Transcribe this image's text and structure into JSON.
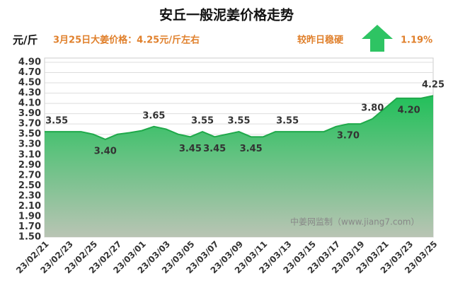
{
  "chart_data": {
    "type": "area",
    "title": "安丘一般泥姜价格走势",
    "unit_label": "元/斤",
    "subtitle": "3月25日大姜价格：4.25元/斤左右",
    "change_label": "较昨日稳硬",
    "change_value": "1.19%",
    "watermark": "中姜网监制（www.jiang7.com）",
    "color": "#1fa94a",
    "grid": true,
    "categories": [
      "23/02/21",
      null,
      "23/02/23",
      null,
      "23/02/25",
      null,
      "23/02/27",
      null,
      "23/03/01",
      null,
      "23/03/03",
      null,
      "23/03/05",
      null,
      "23/03/07",
      null,
      "23/03/09",
      null,
      "23/03/11",
      null,
      "23/03/13",
      null,
      "23/03/15",
      null,
      "23/03/17",
      null,
      "23/03/19",
      null,
      "23/03/21",
      null,
      "23/03/23",
      null,
      "23/03/25"
    ],
    "values": [
      3.55,
      3.55,
      3.55,
      3.55,
      3.5,
      3.4,
      3.5,
      3.53,
      3.57,
      3.65,
      3.6,
      3.5,
      3.45,
      3.55,
      3.45,
      3.5,
      3.55,
      3.45,
      3.45,
      3.55,
      3.55,
      3.55,
      3.55,
      3.55,
      3.65,
      3.7,
      3.7,
      3.8,
      4.0,
      4.2,
      4.2,
      4.2,
      4.25
    ],
    "value_labels": [
      null,
      "3.55",
      null,
      null,
      null,
      "3.40",
      null,
      null,
      null,
      "3.65",
      null,
      null,
      "3.45",
      "3.55",
      "3.45",
      null,
      "3.55",
      "3.45",
      null,
      null,
      "3.55",
      null,
      null,
      null,
      null,
      "3.70",
      null,
      "3.80",
      null,
      null,
      "4.20",
      null,
      "4.25"
    ],
    "ylim": [
      1.5,
      4.9
    ],
    "yticks": [
      {
        "value": 1.5,
        "label": "1.50"
      },
      {
        "value": 1.7,
        "label": "1.70"
      },
      {
        "value": 1.9,
        "label": "1.90"
      },
      {
        "value": 2.1,
        "label": "2.10"
      },
      {
        "value": 2.3,
        "label": "2.30"
      },
      {
        "value": 2.5,
        "label": "2.50"
      },
      {
        "value": 2.7,
        "label": "2.70"
      },
      {
        "value": 2.9,
        "label": "2.90"
      },
      {
        "value": 3.1,
        "label": "3.10"
      },
      {
        "value": 3.3,
        "label": "3.30"
      },
      {
        "value": 3.5,
        "label": "3.50"
      },
      {
        "value": 3.7,
        "label": "3.70"
      },
      {
        "value": 3.9,
        "label": "3.90"
      },
      {
        "value": 4.1,
        "label": "4.10"
      },
      {
        "value": 4.3,
        "label": "4.30"
      },
      {
        "value": 4.5,
        "label": "4.50"
      },
      {
        "value": 4.7,
        "label": "4.70"
      },
      {
        "value": 4.9,
        "label": "4.90"
      }
    ]
  }
}
